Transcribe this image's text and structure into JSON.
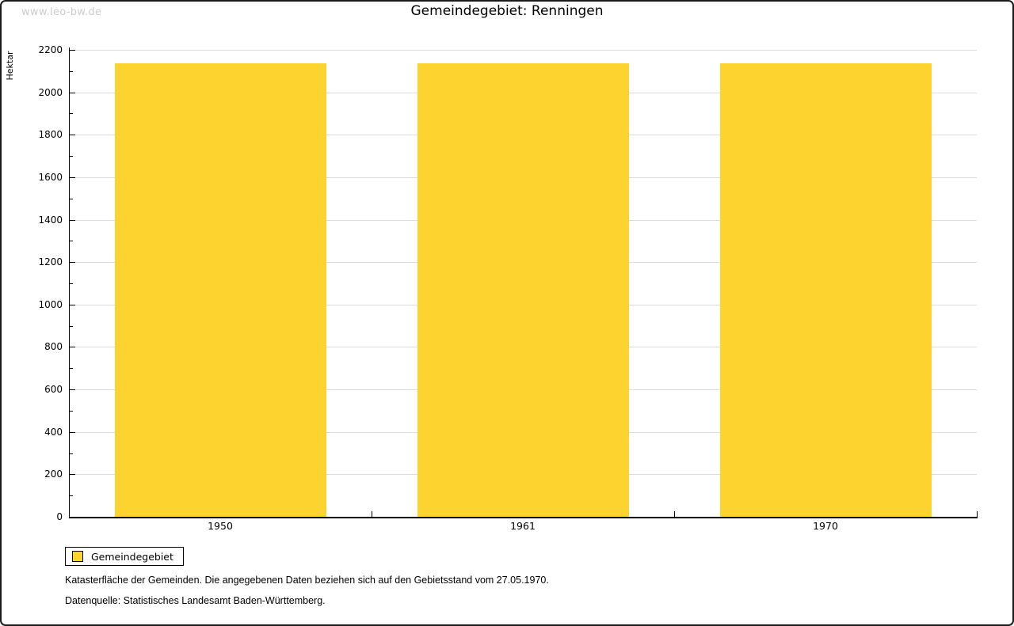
{
  "watermark": "www.leo-bw.de",
  "title": "Gemeindegebiet: Renningen",
  "legend": {
    "label": "Gemeindegebiet"
  },
  "footer": {
    "line1": "Katasterfläche der Gemeinden. Die angegebenen Daten beziehen sich auf den Gebietsstand vom 27.05.1970.",
    "line2": "Datenquelle: Statistisches Landesamt Baden-Württemberg."
  },
  "colors": {
    "bar": "#FDD32F",
    "grid": "#DCDCDC",
    "axis": "#000000",
    "watermark": "#CCCCCC"
  },
  "chart_data": {
    "type": "bar",
    "title": "Gemeindegebiet: Renningen",
    "categories": [
      "1950",
      "1961",
      "1970"
    ],
    "series": [
      {
        "name": "Gemeindegebiet",
        "values": [
          2135,
          2135,
          2135
        ]
      }
    ],
    "xlabel": "",
    "ylabel": "Hektar",
    "ylim": [
      0,
      2200
    ],
    "ytick_major_step": 200,
    "ytick_minor_step": 100,
    "grid": true,
    "legend_position": "bottom-left",
    "bar_color": "#FDD32F"
  }
}
